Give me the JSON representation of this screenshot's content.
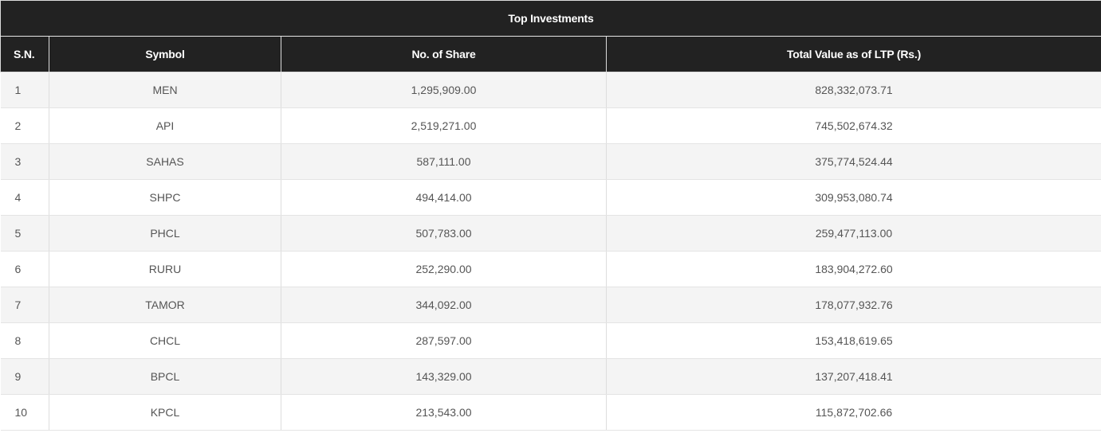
{
  "table": {
    "title": "Top Investments",
    "headers": [
      "S.N.",
      "Symbol",
      "No. of Share",
      "Total Value as of LTP (Rs.)"
    ],
    "rows": [
      [
        "1",
        "MEN",
        "1,295,909.00",
        "828,332,073.71"
      ],
      [
        "2",
        "API",
        "2,519,271.00",
        "745,502,674.32"
      ],
      [
        "3",
        "SAHAS",
        "587,111.00",
        "375,774,524.44"
      ],
      [
        "4",
        "SHPC",
        "494,414.00",
        "309,953,080.74"
      ],
      [
        "5",
        "PHCL",
        "507,783.00",
        "259,477,113.00"
      ],
      [
        "6",
        "RURU",
        "252,290.00",
        "183,904,272.60"
      ],
      [
        "7",
        "TAMOR",
        "344,092.00",
        "178,077,932.76"
      ],
      [
        "8",
        "CHCL",
        "287,597.00",
        "153,418,619.65"
      ],
      [
        "9",
        "BPCL",
        "143,329.00",
        "137,207,418.41"
      ],
      [
        "10",
        "KPCL",
        "213,543.00",
        "115,872,702.66"
      ]
    ]
  }
}
